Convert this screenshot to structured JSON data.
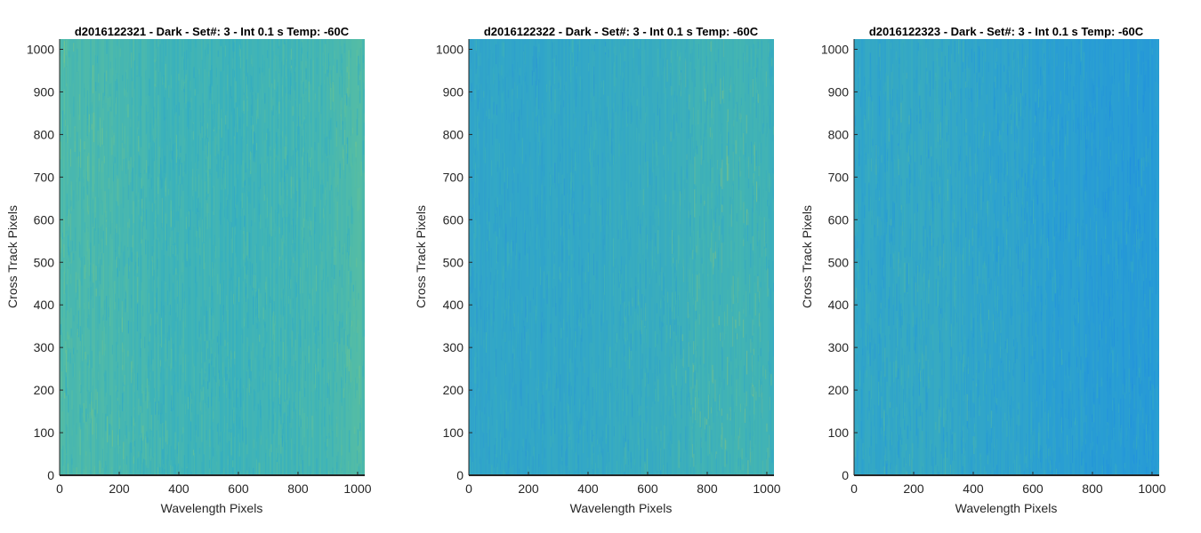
{
  "window": {
    "background": "#ffffff"
  },
  "chart_data": [
    {
      "type": "heatmap",
      "title": "d2016122321 - Dark - Set#: 3 - Int 0.1 s Temp: -60C",
      "xlabel": "Wavelength Pixels",
      "ylabel": "Cross Track Pixels",
      "xlim": [
        0,
        1024
      ],
      "ylim": [
        0,
        1024
      ],
      "xticks": [
        0,
        200,
        400,
        600,
        800,
        1000
      ],
      "yticks": [
        0,
        100,
        200,
        300,
        400,
        500,
        600,
        700,
        800,
        900,
        1000
      ],
      "colormap": "parula",
      "dominant_colors": [
        "#2a9fcf",
        "#35afc0",
        "#5bbf9f",
        "#9ccc6b"
      ],
      "column_profile": {
        "x": [
          0,
          100,
          200,
          300,
          400,
          500,
          600,
          700,
          800,
          900,
          1000,
          1024
        ],
        "level": [
          0.55,
          0.52,
          0.5,
          0.45,
          0.43,
          0.42,
          0.42,
          0.43,
          0.45,
          0.48,
          0.55,
          0.55
        ]
      }
    },
    {
      "type": "heatmap",
      "title": "d2016122322 - Dark - Set#: 3 - Int 0.1 s Temp: -60C",
      "xlabel": "Wavelength Pixels",
      "ylabel": "Cross Track Pixels",
      "xlim": [
        0,
        1024
      ],
      "ylim": [
        0,
        1024
      ],
      "xticks": [
        0,
        200,
        400,
        600,
        800,
        1000
      ],
      "yticks": [
        0,
        100,
        200,
        300,
        400,
        500,
        600,
        700,
        800,
        900,
        1000
      ],
      "colormap": "parula",
      "dominant_colors": [
        "#2a95d5",
        "#31a6c8",
        "#45b6b0",
        "#a3c96a"
      ],
      "column_profile": {
        "x": [
          0,
          100,
          200,
          300,
          400,
          500,
          600,
          700,
          800,
          900,
          1000,
          1024
        ],
        "level": [
          0.33,
          0.32,
          0.32,
          0.35,
          0.38,
          0.42,
          0.45,
          0.5,
          0.58,
          0.62,
          0.55,
          0.5
        ]
      }
    },
    {
      "type": "heatmap",
      "title": "d2016122323 - Dark - Set#: 3 - Int 0.1 s Temp: -60C",
      "xlabel": "Wavelength Pixels",
      "ylabel": "Cross Track Pixels",
      "xlim": [
        0,
        1024
      ],
      "ylim": [
        0,
        1024
      ],
      "xticks": [
        0,
        200,
        400,
        600,
        800,
        1000
      ],
      "yticks": [
        0,
        100,
        200,
        300,
        400,
        500,
        600,
        700,
        800,
        900,
        1000
      ],
      "colormap": "parula",
      "dominant_colors": [
        "#1f8ee0",
        "#2a9fd2",
        "#40b2b5",
        "#9ec86c"
      ],
      "column_profile": {
        "x": [
          0,
          100,
          200,
          300,
          400,
          500,
          600,
          700,
          800,
          900,
          1000,
          1024
        ],
        "level": [
          0.44,
          0.47,
          0.48,
          0.47,
          0.46,
          0.42,
          0.38,
          0.34,
          0.3,
          0.27,
          0.28,
          0.3
        ]
      }
    }
  ]
}
